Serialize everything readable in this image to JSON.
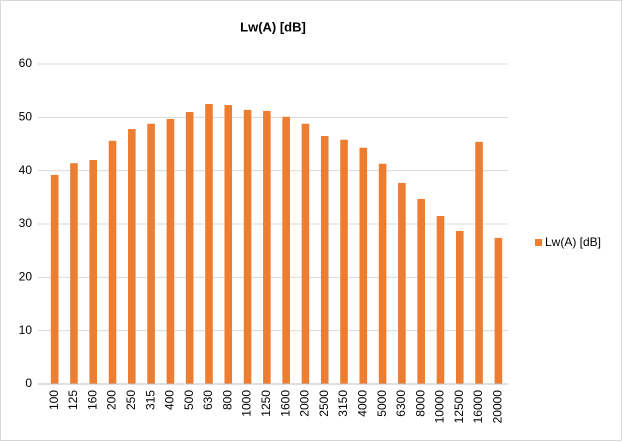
{
  "chart_data": {
    "type": "bar",
    "title": "Lw(A) [dB]",
    "categories": [
      "100",
      "125",
      "160",
      "200",
      "250",
      "315",
      "400",
      "500",
      "630",
      "800",
      "1000",
      "1250",
      "1600",
      "2000",
      "2500",
      "3150",
      "4000",
      "5000",
      "6300",
      "8000",
      "10000",
      "12500",
      "16000",
      "20000"
    ],
    "series": [
      {
        "name": "Lw(A) [dB]",
        "color": "#ed7d31",
        "values": [
          39.2,
          41.4,
          42,
          45.6,
          47.8,
          48.8,
          49.7,
          51,
          52.5,
          52.3,
          51.4,
          51.2,
          50.1,
          48.8,
          46.5,
          45.8,
          44.3,
          41.3,
          37.7,
          34.7,
          31.5,
          28.7,
          45.4,
          27.4
        ]
      }
    ],
    "ylim": [
      0,
      60
    ],
    "yticks": [
      0,
      10,
      20,
      30,
      40,
      50,
      60
    ],
    "grid": true,
    "legend": "right"
  }
}
